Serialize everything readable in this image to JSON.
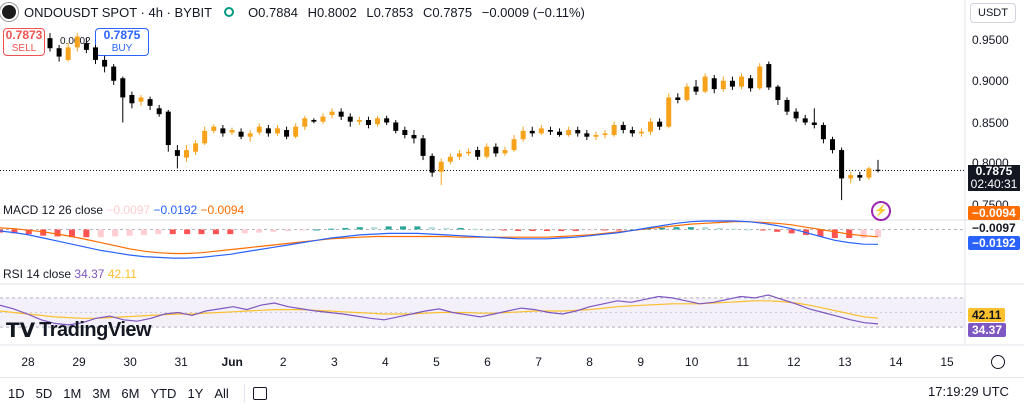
{
  "header": {
    "symbol": "ONDOUSDT SPOT · 4h · BYBIT",
    "open": "O0.7884",
    "high": "H0.8002",
    "low": "L0.7853",
    "close": "C0.7875",
    "change": "−0.0009 (−0.11%)",
    "currency": "USDT"
  },
  "trade": {
    "sell_price": "0.7873",
    "sell_label": "SELL",
    "spread": "0.0002",
    "buy_price": "0.7875",
    "buy_label": "BUY"
  },
  "price_axis": {
    "ticks": [
      "0.9500",
      "0.9000",
      "0.8500",
      "0.8000",
      "0.7500"
    ],
    "last_price": "0.7875",
    "countdown": "02:40:31"
  },
  "macd": {
    "label": "MACD 12 26 close",
    "histogram": "−0.0097",
    "macd": "−0.0192",
    "signal": "−0.0094",
    "tag_signal": "−0.0094",
    "tag_hist": "−0.0097",
    "tag_macd": "−0.0192"
  },
  "rsi": {
    "label": "RSI 14 close",
    "rsi": "34.37",
    "ma": "42.11",
    "tag_ma": "42.11",
    "tag_rsi": "34.37"
  },
  "time_axis": [
    "28",
    "29",
    "30",
    "31",
    "Jun",
    "2",
    "3",
    "4",
    "5",
    "6",
    "7",
    "8",
    "9",
    "10",
    "11",
    "12",
    "13",
    "14",
    "15"
  ],
  "timeframes": [
    "1D",
    "5D",
    "1M",
    "3M",
    "6M",
    "YTD",
    "1Y",
    "All"
  ],
  "clock": "17:19:29 UTC",
  "logo_text": "TradingView",
  "colors": {
    "up": "#f7a21b",
    "down": "#000000",
    "macd_line": "#2962ff",
    "signal_line": "#ff6d00",
    "rsi_line": "#7e57c2",
    "rsi_ma": "#fbc02d"
  },
  "chart_data": {
    "type": "candlestick",
    "candles": [
      {
        "o": 0.946,
        "c": 0.934,
        "h": 0.952,
        "l": 0.93
      },
      {
        "o": 0.934,
        "c": 0.924,
        "h": 0.938,
        "l": 0.918
      },
      {
        "o": 0.92,
        "c": 0.935,
        "h": 0.94,
        "l": 0.918
      },
      {
        "o": 0.935,
        "c": 0.948,
        "h": 0.952,
        "l": 0.93
      },
      {
        "o": 0.94,
        "c": 0.932,
        "h": 0.946,
        "l": 0.928
      },
      {
        "o": 0.935,
        "c": 0.92,
        "h": 0.938,
        "l": 0.915
      },
      {
        "o": 0.92,
        "c": 0.912,
        "h": 0.925,
        "l": 0.905
      },
      {
        "o": 0.912,
        "c": 0.895,
        "h": 0.915,
        "l": 0.89
      },
      {
        "o": 0.898,
        "c": 0.875,
        "h": 0.9,
        "l": 0.845
      },
      {
        "o": 0.878,
        "c": 0.868,
        "h": 0.882,
        "l": 0.862
      },
      {
        "o": 0.87,
        "c": 0.875,
        "h": 0.878,
        "l": 0.865
      },
      {
        "o": 0.873,
        "c": 0.865,
        "h": 0.876,
        "l": 0.86
      },
      {
        "o": 0.862,
        "c": 0.855,
        "h": 0.866,
        "l": 0.852
      },
      {
        "o": 0.858,
        "c": 0.818,
        "h": 0.86,
        "l": 0.81
      },
      {
        "o": 0.812,
        "c": 0.805,
        "h": 0.818,
        "l": 0.79
      },
      {
        "o": 0.803,
        "c": 0.812,
        "h": 0.818,
        "l": 0.798
      },
      {
        "o": 0.81,
        "c": 0.82,
        "h": 0.824,
        "l": 0.806
      },
      {
        "o": 0.82,
        "c": 0.835,
        "h": 0.84,
        "l": 0.818
      },
      {
        "o": 0.835,
        "c": 0.84,
        "h": 0.843,
        "l": 0.832
      },
      {
        "o": 0.838,
        "c": 0.832,
        "h": 0.842,
        "l": 0.828
      },
      {
        "o": 0.833,
        "c": 0.836,
        "h": 0.839,
        "l": 0.83
      },
      {
        "o": 0.834,
        "c": 0.828,
        "h": 0.838,
        "l": 0.825
      },
      {
        "o": 0.828,
        "c": 0.832,
        "h": 0.836,
        "l": 0.822
      },
      {
        "o": 0.833,
        "c": 0.84,
        "h": 0.844,
        "l": 0.83
      },
      {
        "o": 0.838,
        "c": 0.832,
        "h": 0.842,
        "l": 0.828
      },
      {
        "o": 0.832,
        "c": 0.838,
        "h": 0.842,
        "l": 0.829
      },
      {
        "o": 0.836,
        "c": 0.828,
        "h": 0.84,
        "l": 0.825
      },
      {
        "o": 0.828,
        "c": 0.84,
        "h": 0.844,
        "l": 0.826
      },
      {
        "o": 0.84,
        "c": 0.85,
        "h": 0.853,
        "l": 0.836
      },
      {
        "o": 0.848,
        "c": 0.846,
        "h": 0.85,
        "l": 0.844
      },
      {
        "o": 0.846,
        "c": 0.852,
        "h": 0.856,
        "l": 0.843
      },
      {
        "o": 0.854,
        "c": 0.858,
        "h": 0.862,
        "l": 0.85
      },
      {
        "o": 0.858,
        "c": 0.852,
        "h": 0.862,
        "l": 0.848
      },
      {
        "o": 0.852,
        "c": 0.846,
        "h": 0.856,
        "l": 0.84
      },
      {
        "o": 0.846,
        "c": 0.848,
        "h": 0.852,
        "l": 0.842
      },
      {
        "o": 0.848,
        "c": 0.842,
        "h": 0.852,
        "l": 0.838
      },
      {
        "o": 0.843,
        "c": 0.85,
        "h": 0.853,
        "l": 0.84
      },
      {
        "o": 0.85,
        "c": 0.845,
        "h": 0.853,
        "l": 0.842
      },
      {
        "o": 0.845,
        "c": 0.835,
        "h": 0.848,
        "l": 0.832
      },
      {
        "o": 0.836,
        "c": 0.83,
        "h": 0.84,
        "l": 0.826
      },
      {
        "o": 0.83,
        "c": 0.826,
        "h": 0.836,
        "l": 0.82
      },
      {
        "o": 0.826,
        "c": 0.805,
        "h": 0.83,
        "l": 0.8
      },
      {
        "o": 0.805,
        "c": 0.785,
        "h": 0.808,
        "l": 0.78
      },
      {
        "o": 0.786,
        "c": 0.798,
        "h": 0.802,
        "l": 0.77
      },
      {
        "o": 0.798,
        "c": 0.804,
        "h": 0.808,
        "l": 0.795
      },
      {
        "o": 0.804,
        "c": 0.808,
        "h": 0.812,
        "l": 0.8
      },
      {
        "o": 0.808,
        "c": 0.81,
        "h": 0.814,
        "l": 0.805
      },
      {
        "o": 0.812,
        "c": 0.804,
        "h": 0.816,
        "l": 0.8
      },
      {
        "o": 0.804,
        "c": 0.816,
        "h": 0.82,
        "l": 0.802
      },
      {
        "o": 0.816,
        "c": 0.808,
        "h": 0.82,
        "l": 0.804
      },
      {
        "o": 0.808,
        "c": 0.812,
        "h": 0.816,
        "l": 0.805
      },
      {
        "o": 0.812,
        "c": 0.825,
        "h": 0.83,
        "l": 0.81
      },
      {
        "o": 0.825,
        "c": 0.835,
        "h": 0.84,
        "l": 0.822
      },
      {
        "o": 0.835,
        "c": 0.832,
        "h": 0.84,
        "l": 0.828
      },
      {
        "o": 0.832,
        "c": 0.838,
        "h": 0.842,
        "l": 0.83
      },
      {
        "o": 0.836,
        "c": 0.834,
        "h": 0.84,
        "l": 0.83
      },
      {
        "o": 0.834,
        "c": 0.83,
        "h": 0.838,
        "l": 0.828
      },
      {
        "o": 0.83,
        "c": 0.836,
        "h": 0.84,
        "l": 0.828
      },
      {
        "o": 0.836,
        "c": 0.832,
        "h": 0.84,
        "l": 0.828
      },
      {
        "o": 0.832,
        "c": 0.828,
        "h": 0.836,
        "l": 0.824
      },
      {
        "o": 0.828,
        "c": 0.83,
        "h": 0.834,
        "l": 0.824
      },
      {
        "o": 0.83,
        "c": 0.832,
        "h": 0.836,
        "l": 0.826
      },
      {
        "o": 0.83,
        "c": 0.842,
        "h": 0.846,
        "l": 0.828
      },
      {
        "o": 0.842,
        "c": 0.836,
        "h": 0.846,
        "l": 0.832
      },
      {
        "o": 0.836,
        "c": 0.832,
        "h": 0.84,
        "l": 0.828
      },
      {
        "o": 0.832,
        "c": 0.834,
        "h": 0.838,
        "l": 0.828
      },
      {
        "o": 0.834,
        "c": 0.846,
        "h": 0.85,
        "l": 0.83
      },
      {
        "o": 0.846,
        "c": 0.84,
        "h": 0.85,
        "l": 0.836
      },
      {
        "o": 0.84,
        "c": 0.875,
        "h": 0.88,
        "l": 0.838
      },
      {
        "o": 0.875,
        "c": 0.872,
        "h": 0.88,
        "l": 0.868
      },
      {
        "o": 0.872,
        "c": 0.888,
        "h": 0.892,
        "l": 0.87
      },
      {
        "o": 0.888,
        "c": 0.882,
        "h": 0.896,
        "l": 0.878
      },
      {
        "o": 0.882,
        "c": 0.9,
        "h": 0.904,
        "l": 0.88
      },
      {
        "o": 0.898,
        "c": 0.885,
        "h": 0.902,
        "l": 0.88
      },
      {
        "o": 0.885,
        "c": 0.895,
        "h": 0.9,
        "l": 0.882
      },
      {
        "o": 0.895,
        "c": 0.888,
        "h": 0.9,
        "l": 0.884
      },
      {
        "o": 0.888,
        "c": 0.9,
        "h": 0.904,
        "l": 0.885
      },
      {
        "o": 0.898,
        "c": 0.886,
        "h": 0.902,
        "l": 0.882
      },
      {
        "o": 0.886,
        "c": 0.912,
        "h": 0.916,
        "l": 0.884
      },
      {
        "o": 0.915,
        "c": 0.887,
        "h": 0.918,
        "l": 0.884
      },
      {
        "o": 0.888,
        "c": 0.872,
        "h": 0.89,
        "l": 0.866
      },
      {
        "o": 0.872,
        "c": 0.858,
        "h": 0.875,
        "l": 0.854
      },
      {
        "o": 0.858,
        "c": 0.85,
        "h": 0.862,
        "l": 0.846
      },
      {
        "o": 0.85,
        "c": 0.845,
        "h": 0.854,
        "l": 0.842
      },
      {
        "o": 0.845,
        "c": 0.842,
        "h": 0.862,
        "l": 0.838
      },
      {
        "o": 0.842,
        "c": 0.825,
        "h": 0.845,
        "l": 0.82
      },
      {
        "o": 0.825,
        "c": 0.812,
        "h": 0.828,
        "l": 0.808
      },
      {
        "o": 0.812,
        "c": 0.778,
        "h": 0.815,
        "l": 0.752
      },
      {
        "o": 0.778,
        "c": 0.782,
        "h": 0.786,
        "l": 0.772
      },
      {
        "o": 0.782,
        "c": 0.779,
        "h": 0.786,
        "l": 0.775
      },
      {
        "o": 0.779,
        "c": 0.79,
        "h": 0.792,
        "l": 0.776
      },
      {
        "o": 0.7884,
        "c": 0.7875,
        "h": 0.8002,
        "l": 0.7853
      }
    ],
    "price_range": [
      0.733,
      0.963
    ],
    "macd_line": [
      -0.002,
      -0.004,
      -0.007,
      -0.011,
      -0.015,
      -0.019,
      -0.023,
      -0.027,
      -0.03,
      -0.033,
      -0.035,
      -0.036,
      -0.037,
      -0.037,
      -0.036,
      -0.034,
      -0.032,
      -0.029,
      -0.026,
      -0.023,
      -0.02,
      -0.017,
      -0.014,
      -0.011,
      -0.009,
      -0.007,
      -0.006,
      -0.005,
      -0.005,
      -0.005,
      -0.006,
      -0.007,
      -0.008,
      -0.009,
      -0.01,
      -0.011,
      -0.012,
      -0.012,
      -0.012,
      -0.011,
      -0.01,
      -0.008,
      -0.006,
      -0.004,
      -0.001,
      0.002,
      0.005,
      0.008,
      0.01,
      0.011,
      0.011,
      0.011,
      0.01,
      0.008,
      0.005,
      0.001,
      -0.004,
      -0.009,
      -0.014,
      -0.017,
      -0.019,
      -0.0192
    ],
    "signal_line": [
      0.002,
      0.001,
      -0.001,
      -0.003,
      -0.006,
      -0.009,
      -0.013,
      -0.017,
      -0.021,
      -0.025,
      -0.028,
      -0.03,
      -0.031,
      -0.031,
      -0.03,
      -0.028,
      -0.026,
      -0.024,
      -0.022,
      -0.02,
      -0.018,
      -0.016,
      -0.014,
      -0.012,
      -0.011,
      -0.01,
      -0.009,
      -0.009,
      -0.009,
      -0.009,
      -0.009,
      -0.009,
      -0.01,
      -0.01,
      -0.01,
      -0.01,
      -0.01,
      -0.01,
      -0.01,
      -0.009,
      -0.008,
      -0.007,
      -0.005,
      -0.003,
      -0.001,
      0.001,
      0.003,
      0.005,
      0.007,
      0.008,
      0.009,
      0.01,
      0.01,
      0.009,
      0.008,
      0.006,
      0.003,
      0.0,
      -0.003,
      -0.006,
      -0.008,
      -0.0094
    ],
    "macd_range": [
      -0.042,
      0.02
    ],
    "rsi_line": [
      60,
      55,
      48,
      40,
      35,
      33,
      36,
      42,
      45,
      40,
      38,
      42,
      48,
      50,
      46,
      52,
      55,
      58,
      54,
      60,
      63,
      58,
      55,
      52,
      50,
      48,
      45,
      42,
      40,
      44,
      48,
      52,
      55,
      50,
      47,
      44,
      48,
      52,
      56,
      54,
      50,
      48,
      52,
      58,
      62,
      66,
      64,
      68,
      72,
      70,
      66,
      62,
      64,
      68,
      72,
      70,
      74,
      68,
      62,
      55,
      50,
      45,
      40,
      36,
      34.37
    ],
    "rsi_ma": [
      52,
      50,
      48,
      46,
      44,
      43,
      42,
      42,
      43,
      44,
      45,
      46,
      47,
      48,
      48,
      49,
      50,
      51,
      52,
      53,
      54,
      54,
      54,
      53,
      52,
      51,
      50,
      49,
      48,
      48,
      48,
      49,
      50,
      50,
      50,
      49,
      49,
      50,
      51,
      52,
      52,
      52,
      53,
      54,
      56,
      58,
      59,
      60,
      61,
      62,
      62,
      62,
      63,
      64,
      65,
      66,
      66,
      65,
      63,
      60,
      56,
      52,
      48,
      44,
      42.11
    ],
    "rsi_range": [
      15,
      85
    ]
  }
}
